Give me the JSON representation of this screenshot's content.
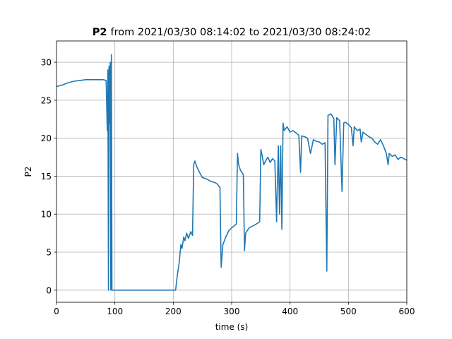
{
  "chart_data": {
    "type": "line",
    "title_bold": "P2",
    "title": "from 2021/03/30 08:14:02 to 2021/03/30 08:24:02",
    "xlabel": "time (s)",
    "ylabel": "P2",
    "xlim": [
      0,
      600
    ],
    "xticks": [
      0,
      100,
      200,
      300,
      400,
      500,
      600
    ],
    "ylim": [
      -1.6,
      32.8
    ],
    "yticks": [
      0,
      5,
      10,
      15,
      20,
      25,
      30
    ],
    "grid": true,
    "x": [
      0,
      10,
      20,
      30,
      40,
      50,
      60,
      70,
      80,
      85,
      87,
      88,
      89,
      90,
      91,
      92,
      93,
      94,
      95,
      100,
      150,
      200,
      204,
      207,
      210,
      213,
      215,
      218,
      220,
      223,
      226,
      230,
      233,
      235,
      237,
      240,
      245,
      250,
      255,
      260,
      265,
      270,
      275,
      280,
      282,
      285,
      290,
      295,
      300,
      305,
      308,
      310,
      312,
      315,
      320,
      322,
      324,
      330,
      340,
      348,
      350,
      352,
      355,
      358,
      362,
      366,
      370,
      374,
      377,
      378,
      380,
      382,
      384,
      386,
      388,
      390,
      395,
      400,
      405,
      410,
      415,
      418,
      420,
      425,
      430,
      435,
      440,
      445,
      450,
      455,
      460,
      463,
      465,
      470,
      475,
      477,
      480,
      485,
      489,
      492,
      495,
      500,
      505,
      508,
      510,
      515,
      520,
      522,
      525,
      530,
      535,
      540,
      545,
      550,
      555,
      560,
      565,
      568,
      570,
      575,
      580,
      585,
      590,
      595,
      600
    ],
    "series": [
      {
        "name": "P2",
        "color": "#1f77b4",
        "values": [
          26.8,
          27.0,
          27.3,
          27.5,
          27.6,
          27.7,
          27.7,
          27.7,
          27.7,
          27.6,
          21,
          29,
          0,
          29.5,
          22,
          30,
          0,
          31,
          0,
          0,
          0,
          0,
          0,
          2,
          3.5,
          6,
          5.5,
          7,
          6.5,
          7.5,
          6.8,
          7.7,
          7.2,
          16.5,
          17,
          16.3,
          15.5,
          14.8,
          14.7,
          14.5,
          14.3,
          14.2,
          14.0,
          13.5,
          3,
          6,
          7,
          7.8,
          8.2,
          8.5,
          8.7,
          18,
          16.5,
          15.8,
          15.2,
          5.2,
          7.5,
          8.2,
          8.6,
          9.0,
          18.5,
          17.8,
          16.5,
          17,
          17.5,
          16.8,
          17.3,
          17,
          9,
          13,
          19,
          10,
          19,
          8,
          22,
          21,
          21.5,
          20.8,
          21,
          20.7,
          20.4,
          15.5,
          20.3,
          20.2,
          20,
          18,
          19.8,
          19.6,
          19.5,
          19.2,
          19.4,
          2.5,
          23,
          23.2,
          22.6,
          16.5,
          22.7,
          22.3,
          13,
          22,
          22.1,
          21.8,
          21.4,
          19,
          21.5,
          21,
          21.2,
          19.5,
          20.8,
          20.5,
          20.2,
          20,
          19.5,
          19.2,
          19.8,
          19,
          18,
          16.5,
          18,
          17.6,
          17.8,
          17.2,
          17.5,
          17.3,
          17.1
        ]
      }
    ]
  }
}
